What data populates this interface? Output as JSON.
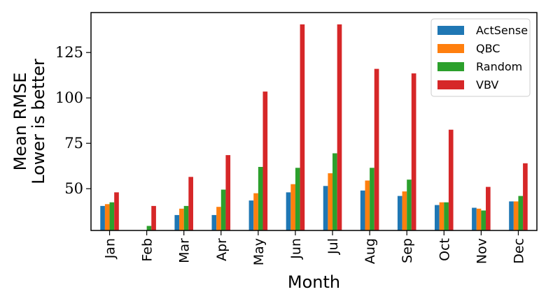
{
  "chart_data": {
    "type": "bar",
    "xlabel": "Month",
    "ylabel_lines": [
      "Mean RMSE",
      "Lower is better"
    ],
    "categories": [
      "Jan",
      "Feb",
      "Mar",
      "Apr",
      "May",
      "Jun",
      "Jul",
      "Aug",
      "Sep",
      "Oct",
      "Nov",
      "Dec"
    ],
    "ylim": [
      27,
      147
    ],
    "yticks": [
      50,
      75,
      100,
      125
    ],
    "legend_position": "top-right",
    "grid": false,
    "series": [
      {
        "name": "ActSense",
        "color": "#1f77b4",
        "values": [
          40.5,
          26,
          35.5,
          35.5,
          43.5,
          48,
          51.5,
          49,
          46,
          41,
          39.5,
          43
        ]
      },
      {
        "name": "QBC",
        "color": "#ff7f0e",
        "values": [
          41.5,
          26,
          39,
          40,
          47.5,
          52.5,
          58.5,
          54.5,
          48.5,
          42.5,
          39,
          43
        ]
      },
      {
        "name": "Random",
        "color": "#2ca02c",
        "values": [
          42.5,
          29.5,
          40.5,
          49.5,
          62,
          61.5,
          69.5,
          61.5,
          55,
          42.5,
          38,
          46
        ]
      },
      {
        "name": "VBV",
        "color": "#d62728",
        "values": [
          48,
          40.5,
          56.5,
          68.5,
          103.5,
          140.5,
          140.5,
          116,
          113.5,
          82.5,
          51,
          64
        ]
      }
    ]
  }
}
